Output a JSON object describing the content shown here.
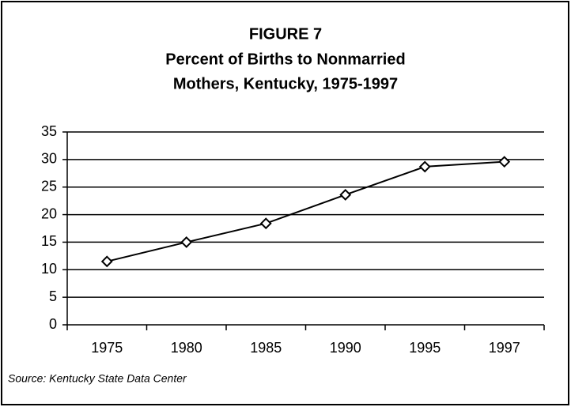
{
  "chart_data": {
    "type": "line",
    "title": "FIGURE 7",
    "subtitle": [
      "Percent of Births to Nonmarried",
      "Mothers, Kentucky, 1975-1997"
    ],
    "categories": [
      "1975",
      "1980",
      "1985",
      "1990",
      "1995",
      "1997"
    ],
    "values": [
      11.5,
      15,
      18.4,
      23.6,
      28.7,
      29.6
    ],
    "color": "#000000",
    "ylim": [
      0,
      35
    ],
    "yticks": [
      0,
      5,
      10,
      15,
      20,
      25,
      30,
      35
    ],
    "grid": true,
    "source": "Source: Kentucky State Data Center"
  }
}
